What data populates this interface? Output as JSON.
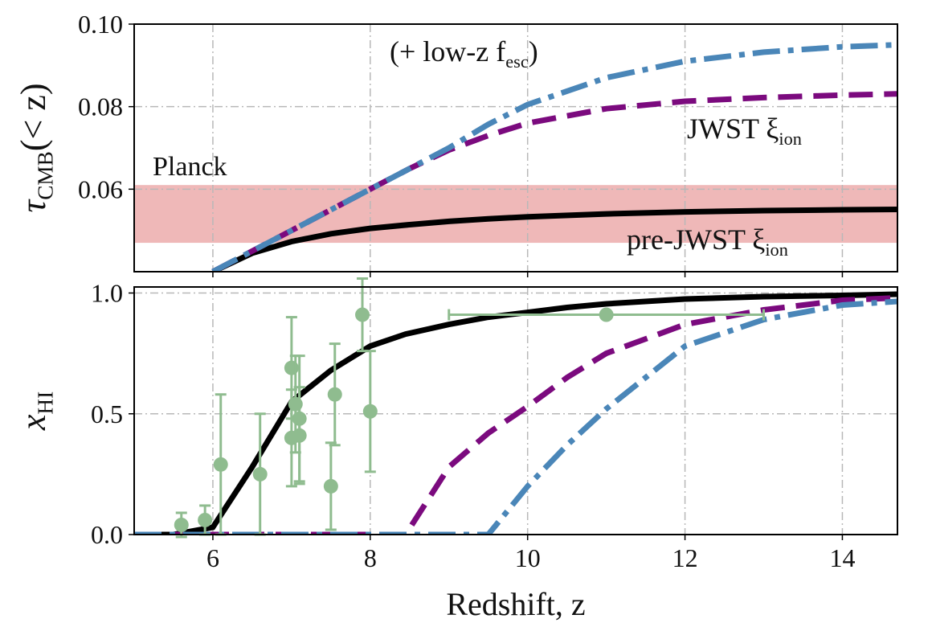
{
  "chart_data": [
    {
      "type": "line",
      "xlim": [
        5,
        14.7
      ],
      "xticks": [
        6,
        8,
        10,
        12,
        14
      ],
      "xticklabels": false,
      "ylim": [
        0.04,
        0.1
      ],
      "yticks": [
        0.06,
        0.08,
        {
          "value": 0.1,
          "label": "0.10"
        }
      ],
      "ylabel": {
        "text": "τ",
        "sub": "CMB",
        "suffix": "(< z)"
      },
      "grid": true,
      "bands": [
        {
          "label": "Planck",
          "range": [
            0.047,
            0.061
          ],
          "color": "#efb8b8",
          "label_color": "#7b1535"
        }
      ],
      "x": [
        6,
        6.5,
        7,
        7.5,
        8,
        8.5,
        9,
        9.5,
        10,
        11,
        12,
        13,
        14,
        14.7
      ],
      "series": [
        {
          "name": "pre-JWST ξ",
          "name_sub": "ion",
          "color": "#000000",
          "linestyle": "solid",
          "values": [
            0.04,
            0.0445,
            0.0473,
            0.0492,
            0.0505,
            0.0514,
            0.0522,
            0.0528,
            0.0533,
            0.054,
            0.0545,
            0.0548,
            0.055,
            0.0551
          ]
        },
        {
          "name": "JWST ξ",
          "name_sub": "ion",
          "color": "#7b0a7e",
          "linestyle": "dashed",
          "values": [
            0.04,
            0.045,
            0.05,
            0.055,
            0.06,
            0.065,
            0.0695,
            0.073,
            0.076,
            0.0795,
            0.0813,
            0.0822,
            0.0828,
            0.0831
          ]
        },
        {
          "name": "(+ low-z f",
          "name_sub": "esc",
          "name_suffix": ")",
          "color": "#4a86b8",
          "linestyle": "dashdot",
          "values": [
            0.04,
            0.045,
            0.05,
            0.055,
            0.06,
            0.065,
            0.07,
            0.0757,
            0.0805,
            0.087,
            0.091,
            0.0932,
            0.0945,
            0.095
          ]
        }
      ]
    },
    {
      "type": "line",
      "xlim": [
        5,
        14.7
      ],
      "xticks": [
        6,
        8,
        10,
        12,
        14
      ],
      "xlabel": "Redshift, z",
      "ylim": [
        0,
        1.025
      ],
      "yticks": [
        {
          "value": 0,
          "label": "0.0"
        },
        0.5,
        {
          "value": 1,
          "label": "1.0"
        }
      ],
      "ylabel": {
        "text": "x",
        "sub": "HI"
      },
      "grid": true,
      "x": [
        5,
        5.5,
        6,
        6.5,
        7,
        7.5,
        8,
        8.45,
        9,
        9.5,
        10,
        10.5,
        11,
        12,
        13,
        14,
        14.7
      ],
      "series": [
        {
          "color": "#000000",
          "linestyle": "solid",
          "values": [
            0,
            0,
            0.03,
            0.28,
            0.55,
            0.68,
            0.78,
            0.83,
            0.87,
            0.9,
            0.92,
            0.94,
            0.955,
            0.975,
            0.985,
            0.99,
            0.995
          ]
        },
        {
          "color": "#7b0a7e",
          "linestyle": "dashed",
          "values": [
            0,
            0,
            0,
            0,
            0,
            0,
            0,
            0,
            0.28,
            0.42,
            0.53,
            0.65,
            0.75,
            0.87,
            0.93,
            0.97,
            0.98
          ]
        },
        {
          "color": "#4a86b8",
          "linestyle": "dashdot",
          "values": [
            0,
            0,
            0,
            0,
            0,
            0,
            0,
            0,
            0,
            0,
            0.2,
            0.37,
            0.52,
            0.78,
            0.89,
            0.95,
            0.965
          ]
        }
      ],
      "points": {
        "color": "#8fbc8f",
        "x": [
          5.6,
          5.9,
          6.1,
          6.6,
          7.0,
          7.0,
          7.05,
          7.1,
          7.1,
          7.5,
          7.55,
          7.9,
          8.0,
          11.0
        ],
        "y": [
          0.04,
          0.06,
          0.29,
          0.25,
          0.69,
          0.4,
          0.54,
          0.48,
          0.41,
          0.2,
          0.58,
          0.91,
          0.51,
          0.91
        ],
        "yerr": [
          0.05,
          0.06,
          0.29,
          0.25,
          0.21,
          0.2,
          0.2,
          0.26,
          0.2,
          0.18,
          0.21,
          0.15,
          0.25,
          null
        ],
        "xerr": [
          null,
          null,
          null,
          null,
          null,
          null,
          null,
          null,
          null,
          null,
          null,
          null,
          null,
          2.0
        ]
      }
    }
  ]
}
